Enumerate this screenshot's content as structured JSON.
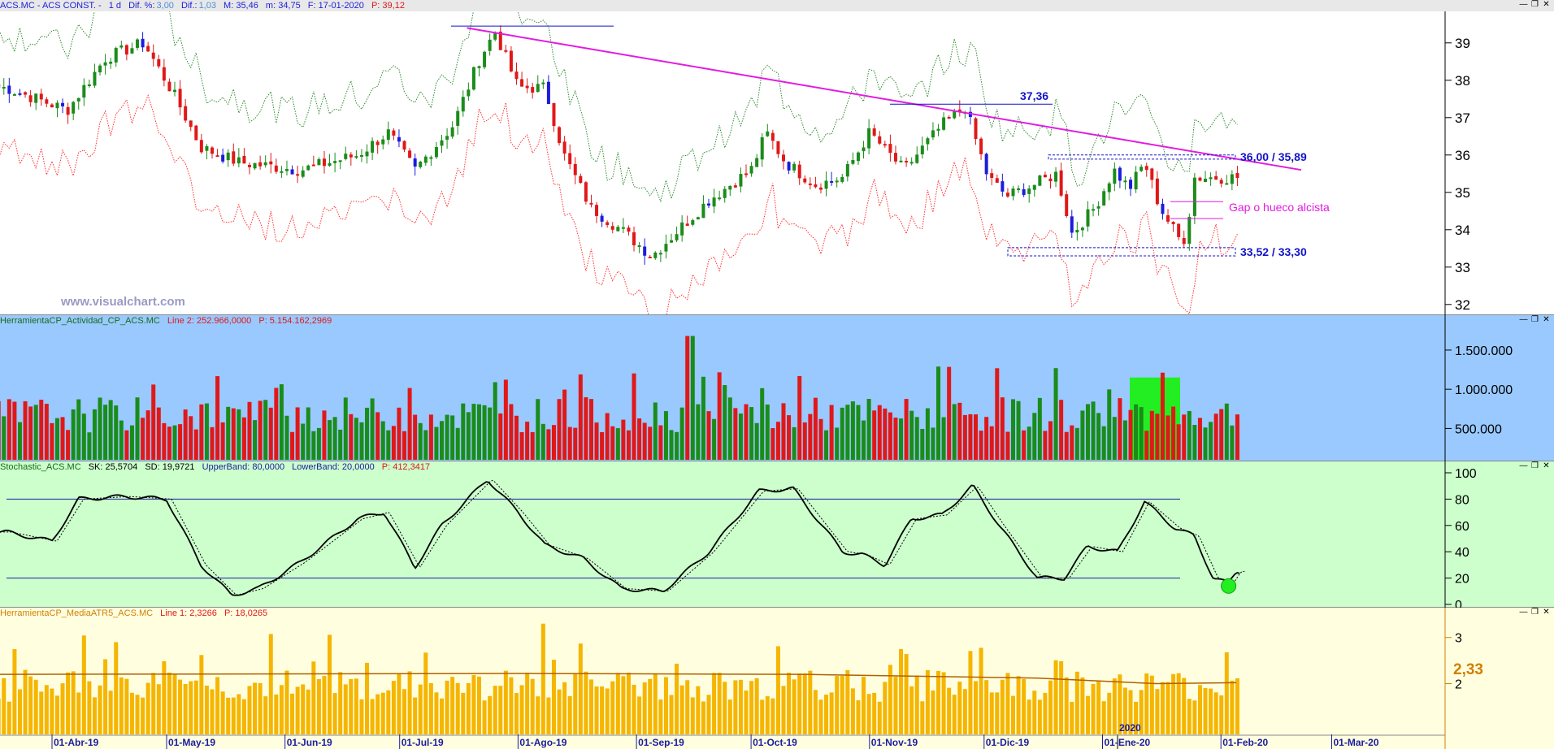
{
  "price_panel": {
    "header": {
      "symbol": "ACS.MC - ACS CONST. -",
      "period": "1 d",
      "dif_pct_label": "Dif. %:",
      "dif_pct": "3,00",
      "dif_label": "Dif.:",
      "dif": "1,03",
      "max": "M: 35,46",
      "min": "m: 34,75",
      "date": "F: 17-01-2020",
      "p": "P: 39,12"
    },
    "watermark": "www.visualchart.com",
    "annotations": {
      "level_high": "37,36",
      "resistance": "36,00 / 35,89",
      "gap": "Gap o hueco alcista",
      "support": "33,52 / 33,30"
    },
    "colors": {
      "bg": "#ffffff",
      "up": "#1a8c1a",
      "down": "#e01818",
      "blue_candle": "#1c1cdc",
      "upper_band": "#2e8b2e",
      "lower_band": "#ff3030",
      "trendline": "#e21be2",
      "annot_blue": "#1414c8",
      "annot_magenta": "#e21be2"
    },
    "yaxis": [
      "39",
      "38",
      "37",
      "36",
      "35",
      "34",
      "33",
      "32"
    ]
  },
  "volume_panel": {
    "header": {
      "name": "HerramientaCP_Actividad_CP_ACS.MC",
      "line": "Line 2: 252.966,0000",
      "p": "P: 5.154.162,2969"
    },
    "yaxis": [
      "1.500.000",
      "1.000.000",
      "500.000"
    ],
    "colors": {
      "bg": "#99c9ff",
      "up": "#1a8c1a",
      "down": "#e01818",
      "highlight": "#22ee22"
    }
  },
  "stoch_panel": {
    "header": {
      "name": "Stochastic_ACS.MC",
      "sk": "SK: 25,5704",
      "sd": "SD: 19,9721",
      "upper": "UpperBand: 80,0000",
      "lower": "LowerBand: 20,0000",
      "p": "P: 412,3417"
    },
    "yaxis": [
      "100",
      "80",
      "60",
      "40",
      "20",
      "0"
    ],
    "colors": {
      "bg": "#ccffcc",
      "line": "#000000",
      "band": "#1c1ca0",
      "highlight": "#22ee22"
    }
  },
  "atr_panel": {
    "header": {
      "name": "HerramientaCP_MediaATR5_ACS.MC",
      "line": "Line 1: 2,3266",
      "p": "P: 18,0265"
    },
    "yaxis": [
      "3",
      "2"
    ],
    "last_value": "2,33",
    "year_marker": "2020",
    "colors": {
      "bg": "#ffffe0",
      "bar": "#f5b500",
      "line": "#b06000",
      "text": "#d08000"
    }
  },
  "xaxis": {
    "labels": [
      "01-Abr-19",
      "01-May-19",
      "01-Jun-19",
      "01-Jul-19",
      "01-Ago-19",
      "01-Sep-19",
      "01-Oct-19",
      "01-Nov-19",
      "01-Dic-19",
      "01-Ene-20",
      "01-Feb-20",
      "01-Mar-20"
    ]
  },
  "chart_data": [
    {
      "type": "candlestick",
      "title": "ACS.MC - ACS CONST. - 1 d",
      "ylim": [
        31.8,
        39.8
      ],
      "keypoints": [
        [
          "2019-03-20",
          37.8
        ],
        [
          "2019-04-05",
          37.2
        ],
        [
          "2019-04-15",
          38.6
        ],
        [
          "2019-04-25",
          39.0
        ],
        [
          "2019-05-03",
          37.6
        ],
        [
          "2019-05-10",
          36.2
        ],
        [
          "2019-05-20",
          35.8
        ],
        [
          "2019-06-05",
          35.6
        ],
        [
          "2019-06-20",
          36.0
        ],
        [
          "2019-06-28",
          36.6
        ],
        [
          "2019-07-05",
          35.6
        ],
        [
          "2019-07-15",
          36.8
        ],
        [
          "2019-07-22",
          38.6
        ],
        [
          "2019-07-26",
          39.3
        ],
        [
          "2019-08-01",
          37.8
        ],
        [
          "2019-08-08",
          37.8
        ],
        [
          "2019-08-13",
          36.0
        ],
        [
          "2019-08-20",
          34.6
        ],
        [
          "2019-08-28",
          34.0
        ],
        [
          "2019-09-05",
          33.3
        ],
        [
          "2019-09-12",
          34.0
        ],
        [
          "2019-09-20",
          34.8
        ],
        [
          "2019-10-01",
          35.6
        ],
        [
          "2019-10-05",
          36.6
        ],
        [
          "2019-10-10",
          35.8
        ],
        [
          "2019-10-18",
          35.2
        ],
        [
          "2019-10-25",
          35.4
        ],
        [
          "2019-11-01",
          36.6
        ],
        [
          "2019-11-10",
          35.6
        ],
        [
          "2019-11-20",
          36.8
        ],
        [
          "2019-11-26",
          37.3
        ],
        [
          "2019-12-02",
          35.4
        ],
        [
          "2019-12-07",
          34.9
        ],
        [
          "2019-12-14",
          35.2
        ],
        [
          "2019-12-20",
          35.5
        ],
        [
          "2019-12-24",
          33.9
        ],
        [
          "2019-12-30",
          34.6
        ],
        [
          "2020-01-04",
          35.6
        ],
        [
          "2020-01-08",
          35.1
        ],
        [
          "2020-01-12",
          35.8
        ],
        [
          "2020-01-16",
          34.6
        ],
        [
          "2020-01-22",
          33.6
        ],
        [
          "2020-01-24",
          34.6
        ],
        [
          "2020-01-25",
          35.4
        ]
      ],
      "trendline": [
        [
          "2019-07-25",
          39.4
        ],
        [
          "2020-02-05",
          35.6
        ]
      ],
      "horizontal_levels": [
        37.36,
        36.0,
        35.89,
        33.52,
        33.3
      ],
      "gap_zone": [
        34.3,
        34.75
      ],
      "last_candle": {
        "open": 34.75,
        "high": 35.46,
        "low": 34.75,
        "close": 35.46
      }
    },
    {
      "type": "bar",
      "title": "HerramientaCP_Actividad_CP_ACS.MC",
      "series": [
        {
          "name": "Line 2",
          "last": 252966.0
        },
        {
          "name": "P",
          "last": 5154162.2969
        }
      ],
      "ylim": [
        100000,
        1800000
      ],
      "peak": 1680000,
      "typical_range": [
        500000,
        1000000
      ]
    },
    {
      "type": "line",
      "title": "Stochastic_ACS.MC",
      "series": [
        {
          "name": "SK",
          "last": 25.5704
        },
        {
          "name": "SD",
          "last": 19.9721
        }
      ],
      "bands": {
        "UpperBand": 80,
        "LowerBand": 20
      },
      "ylim": [
        0,
        100
      ],
      "keypoints": [
        [
          "2019-03-20",
          55
        ],
        [
          "2019-04-01",
          48
        ],
        [
          "2019-04-08",
          80
        ],
        [
          "2019-04-20",
          82
        ],
        [
          "2019-05-01",
          80
        ],
        [
          "2019-05-10",
          30
        ],
        [
          "2019-05-18",
          7
        ],
        [
          "2019-05-25",
          12
        ],
        [
          "2019-06-05",
          32
        ],
        [
          "2019-06-20",
          65
        ],
        [
          "2019-06-27",
          70
        ],
        [
          "2019-07-05",
          28
        ],
        [
          "2019-07-12",
          60
        ],
        [
          "2019-07-24",
          95
        ],
        [
          "2019-08-01",
          70
        ],
        [
          "2019-08-08",
          45
        ],
        [
          "2019-08-18",
          35
        ],
        [
          "2019-08-28",
          12
        ],
        [
          "2019-09-08",
          10
        ],
        [
          "2019-09-20",
          40
        ],
        [
          "2019-10-03",
          86
        ],
        [
          "2019-10-12",
          88
        ],
        [
          "2019-10-25",
          40
        ],
        [
          "2019-10-30",
          38
        ],
        [
          "2019-11-05",
          30
        ],
        [
          "2019-11-12",
          65
        ],
        [
          "2019-11-20",
          68
        ],
        [
          "2019-11-28",
          90
        ],
        [
          "2019-12-05",
          60
        ],
        [
          "2019-12-15",
          20
        ],
        [
          "2019-12-22",
          20
        ],
        [
          "2019-12-28",
          44
        ],
        [
          "2020-01-05",
          40
        ],
        [
          "2020-01-12",
          78
        ],
        [
          "2020-01-20",
          58
        ],
        [
          "2020-01-25",
          52
        ],
        [
          "2020-01-30",
          20
        ],
        [
          "2020-02-03",
          16
        ],
        [
          "2020-02-05",
          25
        ]
      ]
    },
    {
      "type": "bar",
      "title": "HerramientaCP_MediaATR5_ACS.MC",
      "series": [
        {
          "name": "Line 1",
          "last": 2.3266
        },
        {
          "name": "P",
          "last": 18.0265
        }
      ],
      "ylim": [
        0.9,
        3.4
      ],
      "peak": 3.3
    }
  ]
}
